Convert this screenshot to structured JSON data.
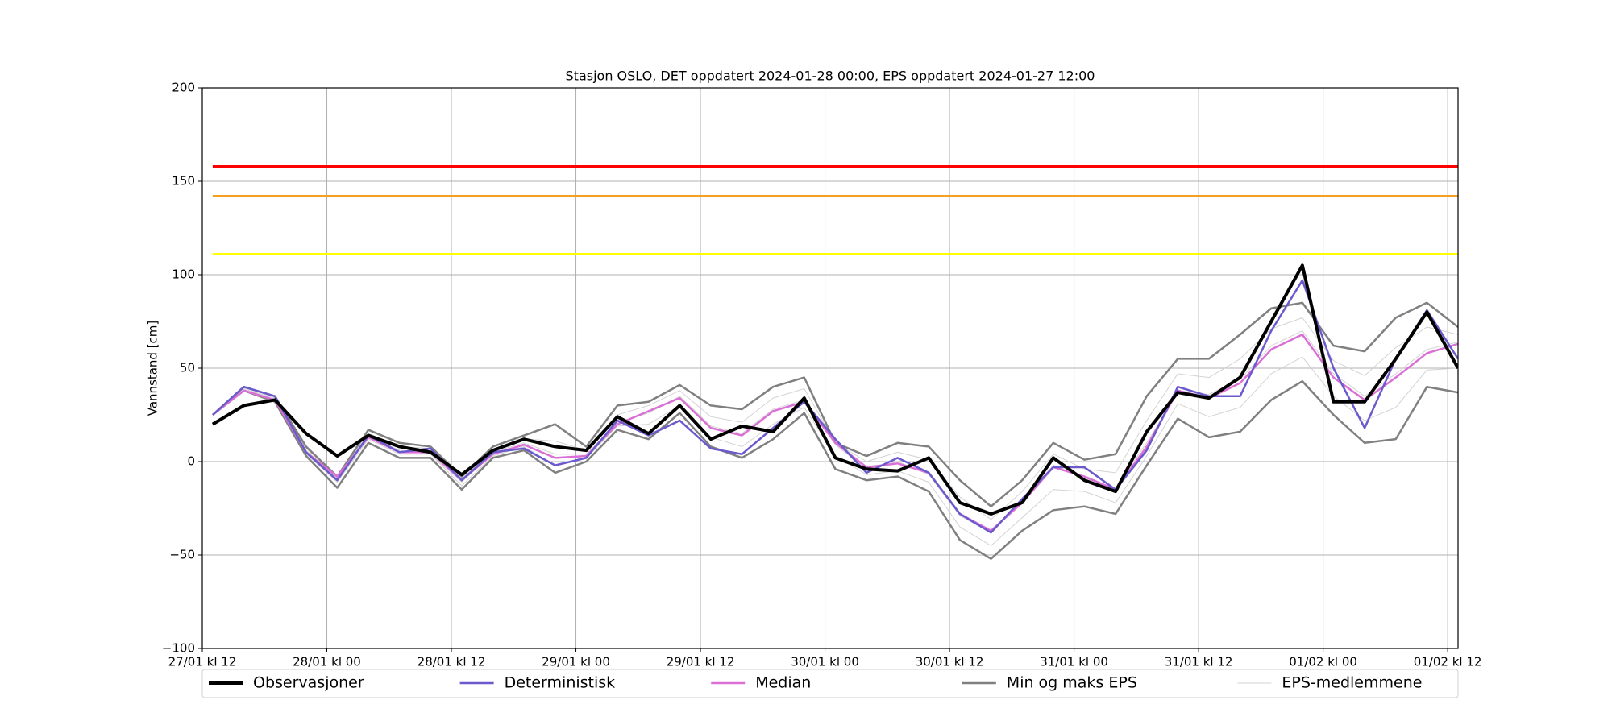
{
  "chart_data": {
    "type": "line",
    "title": "Stasjon OSLO, DET oppdatert 2024-01-28 00:00, EPS oppdatert 2024-01-27 12:00",
    "y_label": "Vannstand [cm]",
    "x": [
      1,
      4,
      7,
      10,
      13,
      16,
      19,
      22,
      25,
      28,
      31,
      34,
      37,
      40,
      43,
      46,
      49,
      52,
      55,
      58,
      61,
      64,
      67,
      70,
      73,
      76,
      79,
      82,
      85,
      88,
      91,
      94,
      97,
      100,
      103,
      106,
      109,
      112,
      115,
      118,
      121
    ],
    "xlim": [
      0,
      121
    ],
    "xticks": [
      {
        "value": 0,
        "label": "27/01 kl 12"
      },
      {
        "value": 12,
        "label": "28/01 kl 00"
      },
      {
        "value": 24,
        "label": "28/01 kl 12"
      },
      {
        "value": 36,
        "label": "29/01 kl 00"
      },
      {
        "value": 48,
        "label": "29/01 kl 12"
      },
      {
        "value": 60,
        "label": "30/01 kl 00"
      },
      {
        "value": 72,
        "label": "30/01 kl 12"
      },
      {
        "value": 84,
        "label": "31/01 kl 00"
      },
      {
        "value": 96,
        "label": "31/01 kl 12"
      },
      {
        "value": 108,
        "label": "01/02 kl 00"
      },
      {
        "value": 120,
        "label": "01/02 kl 12"
      }
    ],
    "ylim": [
      -100,
      200
    ],
    "yticks": [
      {
        "value": -100,
        "label": "−100"
      },
      {
        "value": -50,
        "label": "−50"
      },
      0,
      50,
      100,
      150,
      200
    ],
    "grid": true,
    "legend": "below",
    "threshold_lines": [
      {
        "value": 158,
        "color": "#ff0000"
      },
      {
        "value": 142,
        "color": "#f5a020"
      },
      {
        "value": 111,
        "color": "#ffff00"
      }
    ],
    "series": [
      {
        "name": "Observasjoner",
        "color": "#000000",
        "linewidth": 4,
        "values": [
          20,
          30,
          33,
          15,
          3,
          14,
          8,
          5,
          -7,
          6,
          12,
          8,
          6,
          24,
          15,
          30,
          12,
          19,
          16,
          34,
          2,
          -4,
          -5,
          2,
          -22,
          -28,
          -22,
          2,
          -10,
          -16,
          16,
          37,
          34,
          45,
          75,
          105,
          32,
          32,
          55,
          80,
          50
        ]
      },
      {
        "name": "Deterministisk",
        "color": "#6a5acd",
        "linewidth": 2.5,
        "values": [
          25,
          40,
          35,
          5,
          -10,
          14,
          5,
          7,
          -10,
          5,
          7,
          -2,
          2,
          22,
          14,
          22,
          7,
          4,
          18,
          32,
          12,
          -6,
          2,
          -6,
          -28,
          -38,
          -20,
          -3,
          -3,
          -15,
          6,
          40,
          35,
          35,
          70,
          97,
          50,
          18,
          55,
          81,
          55
        ]
      },
      {
        "name": "Median",
        "color": "#da70d6",
        "linewidth": 2.5,
        "values": [
          25,
          38,
          33,
          5,
          -8,
          13,
          5,
          5,
          -10,
          4,
          9,
          2,
          3,
          20,
          27,
          34,
          18,
          14,
          27,
          32,
          10,
          -3,
          -1,
          -6,
          -28,
          -37,
          -22,
          -3,
          -8,
          -15,
          8,
          38,
          34,
          42,
          60,
          68,
          45,
          33,
          45,
          58,
          63
        ]
      }
    ],
    "eps_range": {
      "name": "Min og maks EPS",
      "color": "#808080",
      "linewidth": 2.5,
      "min": [
        25,
        38,
        32,
        3,
        -14,
        10,
        2,
        2,
        -15,
        2,
        6,
        -6,
        0,
        17,
        12,
        26,
        8,
        2,
        12,
        26,
        -4,
        -10,
        -8,
        -16,
        -42,
        -52,
        -37,
        -26,
        -24,
        -28,
        -2,
        23,
        13,
        16,
        33,
        43,
        25,
        10,
        12,
        40,
        37
      ],
      "max": [
        25,
        40,
        35,
        8,
        -8,
        17,
        10,
        8,
        -8,
        8,
        14,
        20,
        8,
        30,
        32,
        41,
        30,
        28,
        40,
        45,
        10,
        3,
        10,
        8,
        -10,
        -24,
        -10,
        10,
        1,
        4,
        35,
        55,
        55,
        68,
        82,
        85,
        62,
        59,
        77,
        85,
        72
      ]
    },
    "eps_members": {
      "name": "EPS-medlemmene",
      "color": "#d3d3d3",
      "linewidth": 1,
      "members": [
        [
          25,
          39,
          34,
          7,
          -8,
          15,
          8,
          7,
          -9,
          6,
          12,
          11,
          6,
          25,
          30,
          38,
          24,
          21,
          34,
          39,
          10,
          0,
          5,
          1,
          -19,
          -31,
          -16,
          4,
          -4,
          -6,
          22,
          47,
          45,
          55,
          71,
          77,
          54,
          46,
          61,
          72,
          68
        ],
        [
          25,
          39,
          33,
          6,
          -9,
          14,
          6,
          4,
          -11,
          5,
          10,
          4,
          4,
          21,
          26,
          35,
          19,
          15,
          28,
          33,
          9,
          -4,
          0,
          -7,
          -29,
          -38,
          -21,
          -2,
          -9,
          -14,
          10,
          37,
          36,
          44,
          62,
          70,
          47,
          35,
          47,
          60,
          64
        ],
        [
          25,
          38,
          33,
          4,
          -11,
          12,
          4,
          4,
          -13,
          3,
          8,
          -2,
          2,
          19,
          20,
          30,
          13,
          8,
          20,
          29,
          3,
          -7,
          -5,
          -11,
          -35,
          -45,
          -30,
          -15,
          -16,
          -22,
          3,
          31,
          24,
          29,
          47,
          56,
          35,
          22,
          29,
          49,
          50
        ]
      ]
    }
  }
}
